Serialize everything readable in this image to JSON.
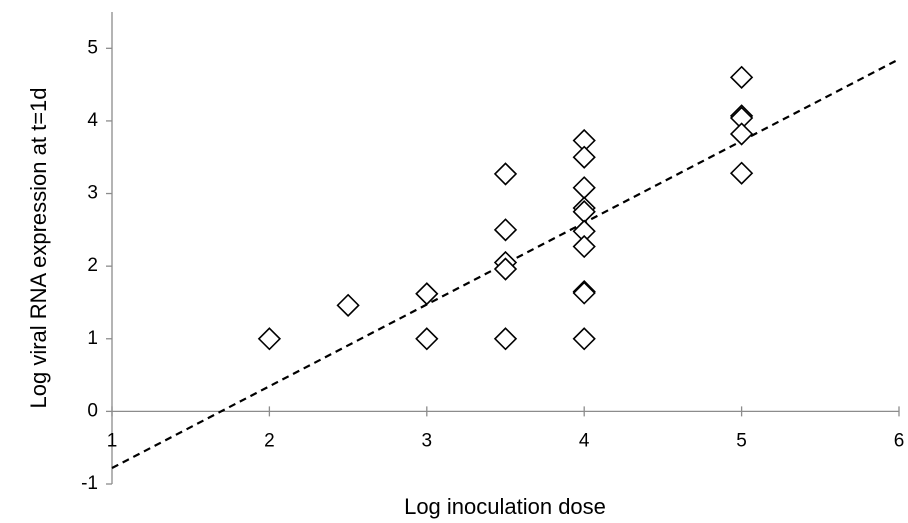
{
  "chart_data": {
    "type": "scatter",
    "x_label": "Log inoculation dose",
    "y_label": "Log viral RNA expression at t=1d",
    "xlim": [
      1,
      6
    ],
    "xticks": [
      1,
      2,
      3,
      4,
      5,
      6
    ],
    "ylim": [
      -1,
      5.5
    ],
    "yticks": [
      -1,
      0,
      1,
      2,
      3,
      4,
      5
    ],
    "grid": false,
    "marker_color": "#000000",
    "x": [
      2,
      2.5,
      3,
      3,
      3.5,
      3.5,
      3.5,
      3.5,
      3.5,
      4,
      4,
      4,
      4,
      4,
      4,
      4,
      4,
      4,
      4,
      5,
      5,
      5,
      5,
      5
    ],
    "values": [
      1,
      1.46,
      1.62,
      1.0,
      3.27,
      2.5,
      2.05,
      1.96,
      1.0,
      3.73,
      3.5,
      3.08,
      2.8,
      2.75,
      2.48,
      2.27,
      1.65,
      1.63,
      1.0,
      4.6,
      4.07,
      4.04,
      3.82,
      3.28
    ],
    "trendline": {
      "x": [
        1,
        6
      ],
      "values": [
        -0.78,
        4.85
      ],
      "color": "#000000"
    }
  }
}
